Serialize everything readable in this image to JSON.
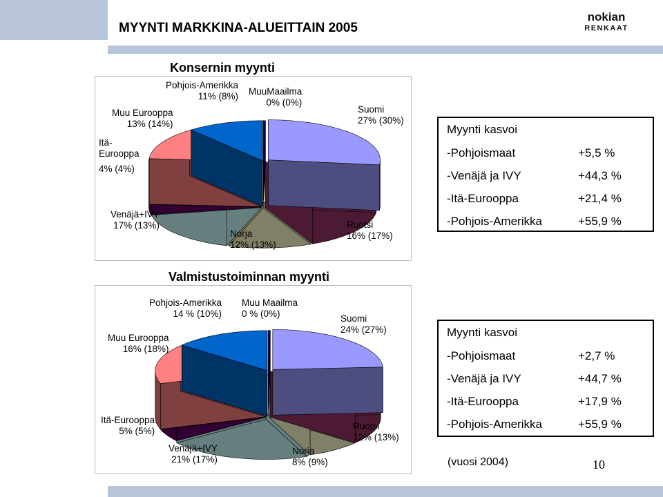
{
  "page": {
    "title": "MYYNTI MARKKINA-ALUEITTAIN 2005",
    "footnote": "(vuosi 2004)",
    "page_number": "10",
    "colors": {
      "accent_band": "#b8c4d8"
    }
  },
  "logo": {
    "line1": "nokian",
    "line2": "RENKAAT"
  },
  "chart_data": [
    {
      "type": "pie",
      "style": "3d exploded",
      "title": "Konsernin myynti",
      "slices": [
        {
          "label": "Suomi",
          "value": 27,
          "value_2004": 30,
          "color": "#9999ff",
          "text": [
            "Suomi",
            "27% (30%)"
          ]
        },
        {
          "label": "Ruotsi",
          "value": 16,
          "value_2004": 17,
          "color": "#993366",
          "text": [
            "Ruotsi",
            "16% (17%)"
          ]
        },
        {
          "label": "Norja",
          "value": 12,
          "value_2004": 13,
          "color": "#ffffcc",
          "text": [
            "Norja",
            "12% (13%)"
          ]
        },
        {
          "label": "Venäjä+IVY",
          "value": 17,
          "value_2004": 13,
          "color": "#ccffff",
          "text": [
            "Venäjä+IVY",
            "17% (13%)"
          ]
        },
        {
          "label": "Itä-Eurooppa",
          "value": 4,
          "value_2004": 4,
          "color": "#660066",
          "text": [
            "Itä-",
            "Eurooppa",
            "4% (4%)"
          ]
        },
        {
          "label": "Muu Eurooppa",
          "value": 13,
          "value_2004": 14,
          "color": "#ff8080",
          "text": [
            "Muu Eurooppa",
            "13% (14%)"
          ]
        },
        {
          "label": "Pohjois-Amerikka",
          "value": 11,
          "value_2004": 8,
          "color": "#0066cc",
          "text": [
            "Pohjois-Amerikka",
            "11% (8%)"
          ]
        },
        {
          "label": "MuuMaailma",
          "value": 0,
          "value_2004": 0,
          "color": "#000080",
          "text": [
            "MuuMaailma",
            "0% (0%)"
          ]
        }
      ]
    },
    {
      "type": "pie",
      "style": "3d exploded",
      "title": "Valmistustoiminnan myynti",
      "slices": [
        {
          "label": "Suomi",
          "value": 24,
          "value_2004": 27,
          "color": "#9999ff",
          "text": [
            "Suomi",
            "24% (27%)"
          ]
        },
        {
          "label": "Ruotsi",
          "value": 12,
          "value_2004": 13,
          "color": "#993366",
          "text": [
            "Ruotsi",
            "12% (13%)"
          ]
        },
        {
          "label": "Norja",
          "value": 8,
          "value_2004": 9,
          "color": "#ffffcc",
          "text": [
            "Norja",
            "8% (9%)"
          ]
        },
        {
          "label": "Venäjä+IVY",
          "value": 21,
          "value_2004": 17,
          "color": "#ccffff",
          "text": [
            "Venäjä+IVY",
            "21% (17%)"
          ]
        },
        {
          "label": "Itä-Eurooppa",
          "value": 5,
          "value_2004": 5,
          "color": "#660066",
          "text": [
            "Itä-Eurooppa",
            "5% (5%)"
          ]
        },
        {
          "label": "Muu Eurooppa",
          "value": 16,
          "value_2004": 18,
          "color": "#ff8080",
          "text": [
            "Muu Eurooppa",
            "16% (18%)"
          ]
        },
        {
          "label": "Pohjois-Amerikka",
          "value": 14,
          "value_2004": 10,
          "color": "#0066cc",
          "text": [
            "Pohjois-Amerikka",
            "14 % (10%)"
          ]
        },
        {
          "label": "Muu Maailma",
          "value": 0,
          "value_2004": 0,
          "color": "#000080",
          "text": [
            "Muu Maailma",
            "0 % (0%)"
          ]
        }
      ]
    }
  ],
  "growth_boxes": [
    {
      "title": "Myynti kasvoi",
      "rows": [
        {
          "label": "-Pohjoismaat",
          "value": "+5,5 %"
        },
        {
          "label": "-Venäjä ja IVY",
          "value": "+44,3 %"
        },
        {
          "label": "-Itä-Eurooppa",
          "value": "+21,4 %"
        },
        {
          "label": "-Pohjois-Amerikka",
          "value": "+55,9 %"
        }
      ]
    },
    {
      "title": "Myynti kasvoi",
      "rows": [
        {
          "label": "-Pohjoismaat",
          "value": "+2,7 %"
        },
        {
          "label": "-Venäjä ja IVY",
          "value": "+44,7 %"
        },
        {
          "label": "-Itä-Eurooppa",
          "value": "+17,9 %"
        },
        {
          "label": "-Pohjois-Amerikka",
          "value": "+55,9 %"
        }
      ]
    }
  ]
}
